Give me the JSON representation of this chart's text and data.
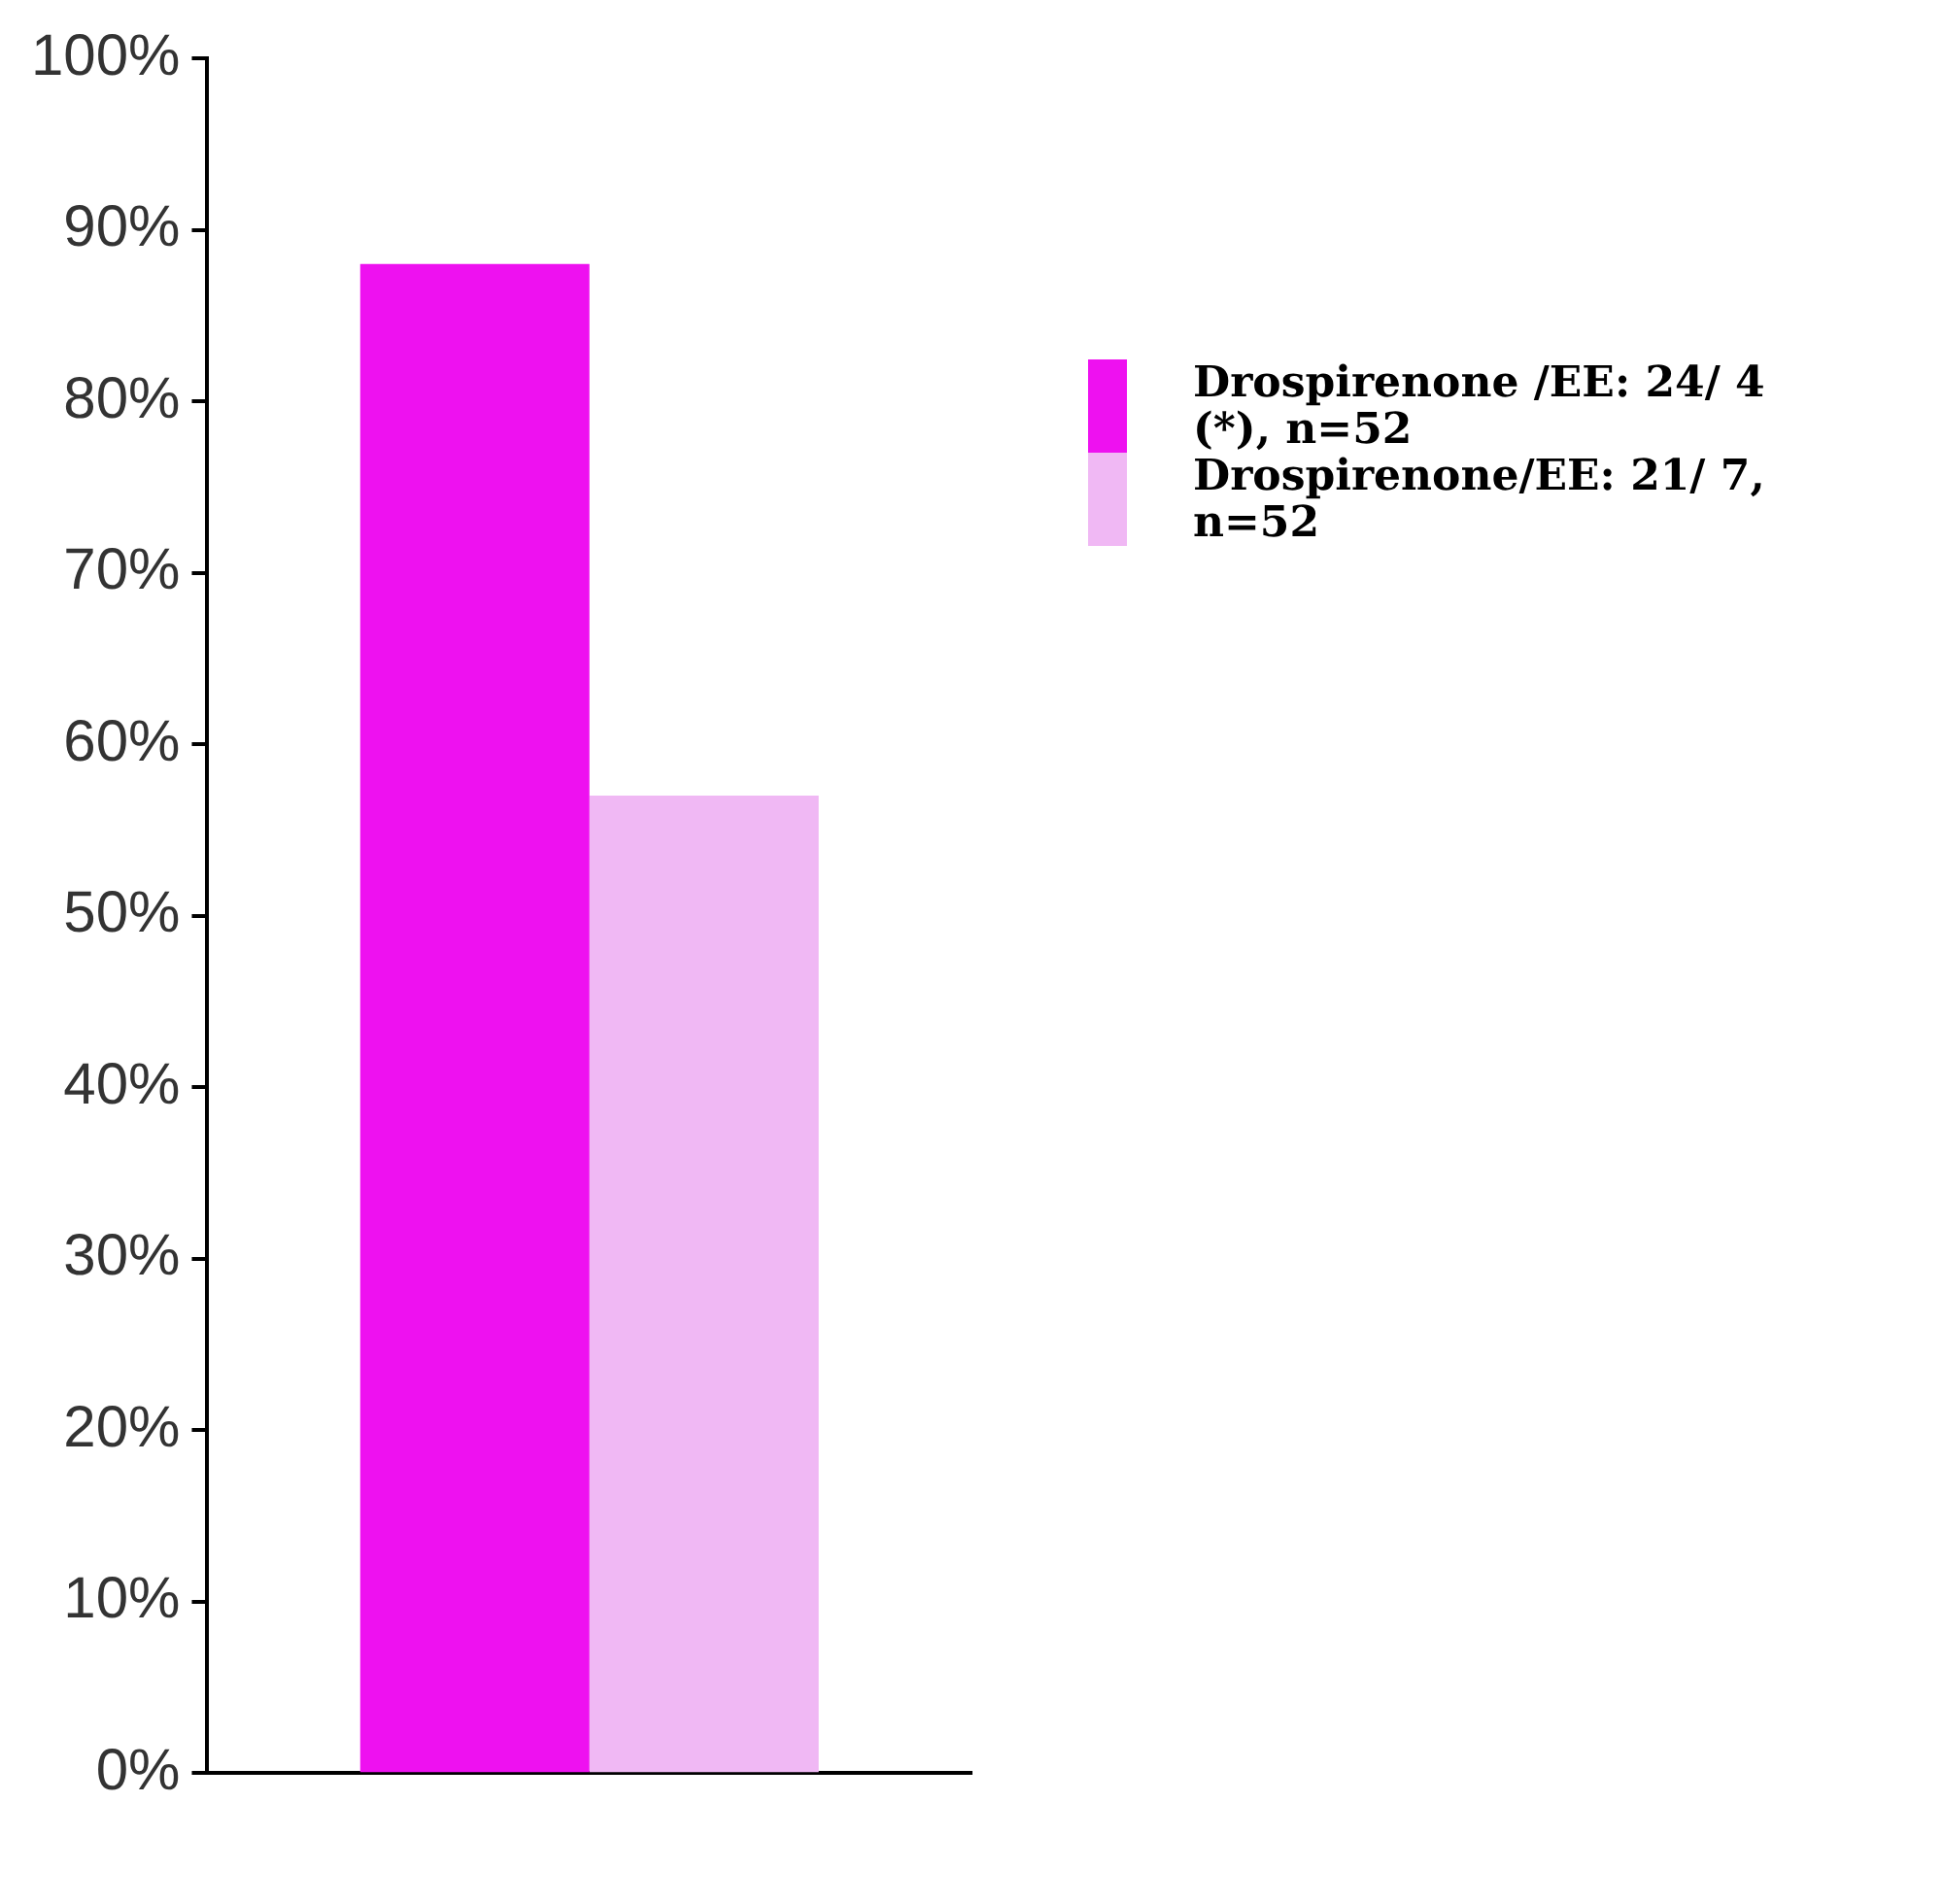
{
  "chart_data": {
    "type": "bar",
    "categories": [
      null
    ],
    "series": [
      {
        "name": "Drospirenone /EE: 24/ 4 (*), n=52",
        "color": "#ee11f0",
        "values": [
          88
        ]
      },
      {
        "name": "Drospirenone/EE: 21/ 7, n=52",
        "color": "#f0b8f4",
        "values": [
          57
        ]
      }
    ],
    "ylim": [
      0,
      100
    ],
    "yticks": [
      {
        "value": 0,
        "label": "0%"
      },
      {
        "value": 10,
        "label": "10%"
      },
      {
        "value": 20,
        "label": "20%"
      },
      {
        "value": 30,
        "label": "30%"
      },
      {
        "value": 40,
        "label": "40%"
      },
      {
        "value": 50,
        "label": "50%"
      },
      {
        "value": 60,
        "label": "60%"
      },
      {
        "value": 70,
        "label": "70%"
      },
      {
        "value": 80,
        "label": "80%"
      },
      {
        "value": 90,
        "label": "90%"
      },
      {
        "value": 100,
        "label": "100%"
      }
    ],
    "grid": false,
    "legend": "right"
  }
}
